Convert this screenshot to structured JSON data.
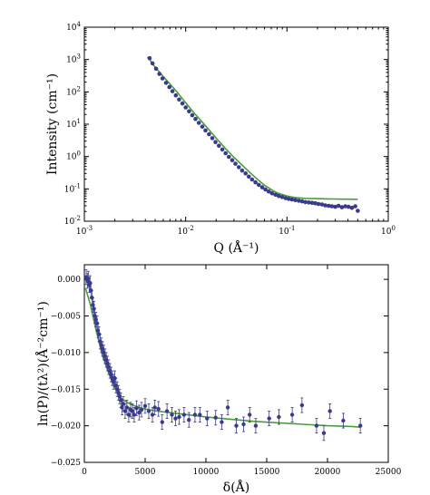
{
  "colors": {
    "data": "#3a3a8c",
    "fit": "#4a9e3a",
    "frame": "#000000"
  },
  "chart_data": [
    {
      "type": "scatter",
      "title": "",
      "xlabel": "Q (Å⁻¹)",
      "ylabel": "Intensity (cm⁻¹)",
      "xscale": "log",
      "yscale": "log",
      "xlim": [
        0.001,
        1
      ],
      "ylim": [
        0.01,
        10000
      ],
      "xticks": [
        {
          "value": 0.001,
          "base": "10",
          "exp": "-3"
        },
        {
          "value": 0.01,
          "base": "10",
          "exp": "-2"
        },
        {
          "value": 0.1,
          "base": "10",
          "exp": "-1"
        },
        {
          "value": 1,
          "base": "10",
          "exp": "0"
        }
      ],
      "yticks": [
        {
          "value": 0.01,
          "base": "10",
          "exp": "-2"
        },
        {
          "value": 0.1,
          "base": "10",
          "exp": "-1"
        },
        {
          "value": 1,
          "base": "10",
          "exp": "0"
        },
        {
          "value": 10,
          "base": "10",
          "exp": "1"
        },
        {
          "value": 100,
          "base": "10",
          "exp": "2"
        },
        {
          "value": 1000,
          "base": "10",
          "exp": "3"
        },
        {
          "value": 10000,
          "base": "10",
          "exp": "4"
        }
      ],
      "grid": false,
      "series": [
        {
          "kind": "points",
          "x": [
            0.0044,
            0.0047,
            0.0051,
            0.0055,
            0.0059,
            0.0064,
            0.0069,
            0.0074,
            0.008,
            0.0086,
            0.0093,
            0.01,
            0.0108,
            0.0116,
            0.0125,
            0.0135,
            0.0146,
            0.0157,
            0.017,
            0.0183,
            0.0197,
            0.0213,
            0.023,
            0.0248,
            0.0267,
            0.0288,
            0.031,
            0.0335,
            0.0361,
            0.039,
            0.042,
            0.0453,
            0.0489,
            0.0527,
            0.0569,
            0.0613,
            0.0661,
            0.0713,
            0.077,
            0.083,
            0.0895,
            0.0966,
            0.104,
            0.112,
            0.121,
            0.131,
            0.141,
            0.152,
            0.164,
            0.177,
            0.19,
            0.205,
            0.222,
            0.239,
            0.258,
            0.278,
            0.3,
            0.323,
            0.349,
            0.376,
            0.405,
            0.437,
            0.472,
            0.5
          ],
          "y": [
            1100,
            760,
            520,
            360,
            260,
            190,
            140,
            105,
            78,
            58,
            44,
            33,
            25,
            19,
            14.5,
            11,
            8.4,
            6.4,
            4.9,
            3.7,
            2.8,
            2.15,
            1.65,
            1.27,
            0.98,
            0.77,
            0.6,
            0.47,
            0.37,
            0.3,
            0.24,
            0.195,
            0.16,
            0.133,
            0.112,
            0.096,
            0.083,
            0.073,
            0.066,
            0.06,
            0.056,
            0.052,
            0.049,
            0.047,
            0.045,
            0.043,
            0.041,
            0.039,
            0.038,
            0.037,
            0.036,
            0.034,
            0.033,
            0.031,
            0.03,
            0.029,
            0.028,
            0.03,
            0.027,
            0.029,
            0.028,
            0.026,
            0.029,
            0.021
          ]
        },
        {
          "kind": "fit",
          "x": [
            0.0042,
            0.005,
            0.006,
            0.007,
            0.008,
            0.01,
            0.012,
            0.015,
            0.02,
            0.025,
            0.03,
            0.04,
            0.05,
            0.06,
            0.07,
            0.08,
            0.1,
            0.12,
            0.15,
            0.2,
            0.25,
            0.3,
            0.35,
            0.4,
            0.45,
            0.5
          ],
          "y": [
            1200,
            580,
            300,
            175,
            110,
            46,
            23,
            10.5,
            3.7,
            1.7,
            0.95,
            0.4,
            0.21,
            0.13,
            0.095,
            0.075,
            0.06,
            0.054,
            0.051,
            0.05,
            0.049,
            0.0485,
            0.048,
            0.048,
            0.0478,
            0.0477
          ]
        }
      ]
    },
    {
      "type": "scatter",
      "title": "",
      "xlabel": "δ(Å)",
      "ylabel": "ln(P)/(tλ²)(Å⁻²cm⁻¹)",
      "xlim": [
        0,
        25000
      ],
      "ylim": [
        -0.025,
        0.002
      ],
      "xticks": [
        "0",
        "5000",
        "10000",
        "15000",
        "20000",
        "25000"
      ],
      "xtick_values": [
        0,
        5000,
        10000,
        15000,
        20000,
        25000
      ],
      "yticks": [
        "0.000",
        "−0.005",
        "−0.010",
        "−0.015",
        "−0.020",
        "−0.025"
      ],
      "ytick_values": [
        0,
        -0.005,
        -0.01,
        -0.015,
        -0.02,
        -0.025
      ],
      "grid": false,
      "series": [
        {
          "kind": "points",
          "x": [
            150,
            250,
            320,
            400,
            470,
            540,
            620,
            700,
            780,
            860,
            950,
            1040,
            1120,
            1200,
            1300,
            1400,
            1500,
            1600,
            1700,
            1800,
            1900,
            2000,
            2100,
            2200,
            2300,
            2400,
            2500,
            2600,
            2700,
            2800,
            2900,
            3000,
            3100,
            3200,
            3350,
            3500,
            3650,
            3800,
            3950,
            4100,
            4300,
            4500,
            4700,
            5000,
            5300,
            5600,
            5800,
            6100,
            6400,
            6800,
            7200,
            7500,
            7800,
            8200,
            8600,
            9100,
            9500,
            10100,
            10800,
            11300,
            11800,
            12500,
            13100,
            13600,
            14100,
            15200,
            16000,
            17100,
            17900,
            19100,
            19700,
            20200,
            21300,
            22700
          ],
          "y": [
            0.0003,
            -0.0002,
            0.0001,
            -0.0008,
            -0.0005,
            -0.0015,
            -0.0025,
            -0.0035,
            -0.004,
            -0.005,
            -0.0055,
            -0.006,
            -0.007,
            -0.0075,
            -0.0085,
            -0.009,
            -0.0095,
            -0.01,
            -0.0105,
            -0.011,
            -0.0115,
            -0.012,
            -0.0125,
            -0.013,
            -0.0135,
            -0.014,
            -0.0135,
            -0.0145,
            -0.015,
            -0.0155,
            -0.016,
            -0.0165,
            -0.0175,
            -0.017,
            -0.018,
            -0.0175,
            -0.0185,
            -0.0178,
            -0.018,
            -0.0185,
            -0.0176,
            -0.0182,
            -0.0178,
            -0.0173,
            -0.018,
            -0.0185,
            -0.0175,
            -0.0177,
            -0.0195,
            -0.018,
            -0.0185,
            -0.019,
            -0.0188,
            -0.0185,
            -0.0192,
            -0.0185,
            -0.0185,
            -0.019,
            -0.0189,
            -0.0195,
            -0.0175,
            -0.02,
            -0.0198,
            -0.0185,
            -0.02,
            -0.019,
            -0.0188,
            -0.0185,
            -0.0172,
            -0.02,
            -0.021,
            -0.018,
            -0.0193,
            -0.02
          ],
          "yerr": [
            0.001,
            0.001,
            0.001,
            0.001,
            0.001,
            0.001,
            0.001,
            0.001,
            0.001,
            0.001,
            0.001,
            0.001,
            0.001,
            0.001,
            0.001,
            0.001,
            0.001,
            0.001,
            0.001,
            0.001,
            0.001,
            0.001,
            0.001,
            0.001,
            0.001,
            0.001,
            0.001,
            0.001,
            0.001,
            0.001,
            0.001,
            0.001,
            0.001,
            0.001,
            0.001,
            0.001,
            0.001,
            0.001,
            0.001,
            0.001,
            0.001,
            0.001,
            0.001,
            0.001,
            0.001,
            0.001,
            0.001,
            0.001,
            0.001,
            0.001,
            0.001,
            0.001,
            0.001,
            0.001,
            0.001,
            0.001,
            0.001,
            0.001,
            0.001,
            0.001,
            0.001,
            0.001,
            0.001,
            0.001,
            0.001,
            0.001,
            0.001,
            0.001,
            0.001,
            0.001,
            0.001,
            0.001,
            0.001,
            0.001
          ]
        },
        {
          "kind": "fit",
          "x": [
            100,
            500,
            1000,
            1500,
            2000,
            2500,
            3000,
            3500,
            4000,
            4500,
            5000,
            6000,
            7000,
            8000,
            10000,
            12000,
            14000,
            16000,
            18000,
            20000,
            22000,
            22700
          ],
          "y": [
            -0.0012,
            -0.0035,
            -0.0072,
            -0.0105,
            -0.0128,
            -0.0148,
            -0.0162,
            -0.0168,
            -0.0172,
            -0.0175,
            -0.0177,
            -0.018,
            -0.0182,
            -0.0184,
            -0.0188,
            -0.0191,
            -0.0194,
            -0.0196,
            -0.0198,
            -0.02,
            -0.0201,
            -0.0202
          ]
        }
      ]
    }
  ]
}
